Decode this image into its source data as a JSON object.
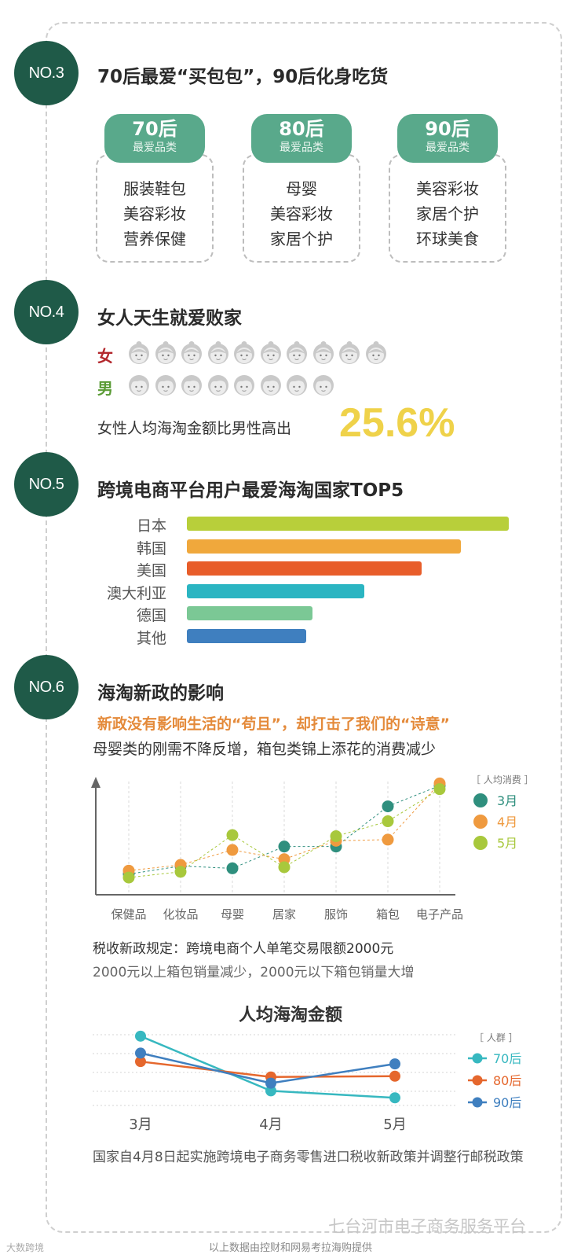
{
  "colors": {
    "badge": "#1f5a48",
    "pill": "#59a98b",
    "female": "#b3282d",
    "male": "#5a9b35",
    "highlight": "#efd24a",
    "orange": "#e48a3a",
    "m3": "#2f8f7e",
    "m4": "#ef9a3f",
    "m5": "#a8c83c",
    "g70": "#37b8c0",
    "g80": "#e5672d",
    "g90": "#3f7fbf"
  },
  "sections": {
    "no3": {
      "badge": "NO.3",
      "title": "70后最爱“买包包”，90后化身吃货"
    },
    "no4": {
      "badge": "NO.4",
      "title": "女人天生就爱败家"
    },
    "no5": {
      "badge": "NO.5",
      "title": "跨境电商平台用户最爱海淘国家TOP5"
    },
    "no6": {
      "badge": "NO.6",
      "title": "海淘新政的影响"
    }
  },
  "categories": [
    {
      "gen": "70后",
      "sub": "最爱品类",
      "items": [
        "服装鞋包",
        "美容彩妆",
        "营养保健"
      ]
    },
    {
      "gen": "80后",
      "sub": "最爱品类",
      "items": [
        "母婴",
        "美容彩妆",
        "家居个护"
      ]
    },
    {
      "gen": "90后",
      "sub": "最爱品类",
      "items": [
        "美容彩妆",
        "家居个护",
        "环球美食"
      ]
    }
  ],
  "gender": {
    "female_label": "女",
    "male_label": "男",
    "female_icon_count": 10,
    "male_icon_count": 8,
    "statement": "女性人均海淘金额比男性高出",
    "percent": "25.6%"
  },
  "countries": {
    "labels": [
      "日本",
      "韩国",
      "美国",
      "澳大利亚",
      "德国",
      "其他"
    ],
    "values": [
      100,
      85,
      73,
      55,
      39,
      37
    ],
    "colors": [
      "#b8cf3a",
      "#f0a83c",
      "#e85d2a",
      "#2bb5c2",
      "#7bc895",
      "#3f7fbf"
    ]
  },
  "policy": {
    "sub_orange": "新政没有影响生活的“苟且”，却打击了我们的“诗意”",
    "sub_dark": "母婴类的刚需不降反增，箱包类锦上添花的消费减少",
    "note1": "税收新政规定：跨境电商个人单笔交易限额2000元",
    "note2": "2000元以上箱包销量减少，2000元以下箱包销量大增",
    "chart2_title": "人均海淘金额",
    "final_note": "国家自4月8日起实施跨境电子商务零售进口税收新政策并调整行邮税政策"
  },
  "chart_data": [
    {
      "type": "scatter",
      "title": "",
      "legend_title": "［ 人均消费 ］",
      "legend_position": "right",
      "categories": [
        "保健品",
        "化妆品",
        "母婴",
        "居家",
        "服饰",
        "箱包",
        "电子产品"
      ],
      "series": [
        {
          "name": "3月",
          "color": "#2f8f7e",
          "values": [
            1.8,
            2.5,
            2.3,
            4.2,
            4.2,
            7.7,
            9.5
          ]
        },
        {
          "name": "4月",
          "color": "#ef9a3f",
          "values": [
            2.1,
            2.6,
            3.9,
            3.1,
            4.7,
            4.8,
            9.7
          ]
        },
        {
          "name": "5月",
          "color": "#a8c83c",
          "values": [
            1.5,
            2.0,
            5.2,
            2.4,
            5.1,
            6.4,
            9.2
          ]
        }
      ],
      "ylim": [
        0,
        10
      ]
    },
    {
      "type": "line",
      "title": "人均海淘金额",
      "legend_title": "［ 人群 ］",
      "legend_position": "right",
      "categories": [
        "3月",
        "4月",
        "5月"
      ],
      "series": [
        {
          "name": "70后",
          "color": "#37b8c0",
          "values": [
            9.2,
            2.1,
            1.2
          ]
        },
        {
          "name": "80后",
          "color": "#e5672d",
          "values": [
            5.9,
            3.9,
            4.0
          ]
        },
        {
          "name": "90后",
          "color": "#3f7fbf",
          "values": [
            7.0,
            3.1,
            5.6
          ]
        }
      ],
      "ylim": [
        0,
        10
      ]
    }
  ],
  "footer": {
    "watermark": "七台河市电子商务服务平台",
    "source": "以上数据由控财和网易考拉海购提供",
    "corner_logo": "大数跨境"
  }
}
